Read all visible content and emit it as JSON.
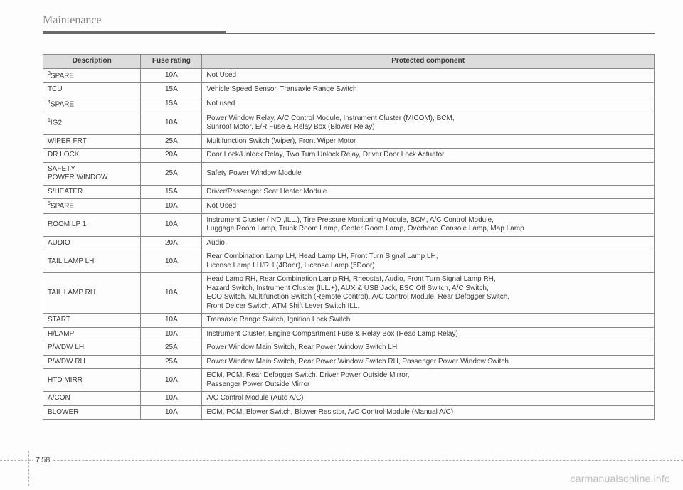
{
  "section_title": "Maintenance",
  "table": {
    "headers": {
      "c1": "Description",
      "c2": "Fuse rating",
      "c3": "Protected component"
    },
    "rows": [
      {
        "sup": "3",
        "desc": "SPARE",
        "rating": "10A",
        "protected": "Not Used"
      },
      {
        "sup": "",
        "desc": "TCU",
        "rating": "15A",
        "protected": "Vehicle Speed Sensor, Transaxle Range Switch"
      },
      {
        "sup": "4",
        "desc": "SPARE",
        "rating": "15A",
        "protected": "Not used"
      },
      {
        "sup": "1",
        "desc": "IG2",
        "rating": "10A",
        "protected": "Power Window Relay, A/C Control Module, Instrument Cluster (MICOM), BCM,\nSunroof Motor, E/R Fuse & Relay Box (Blower Relay)"
      },
      {
        "sup": "",
        "desc": "WIPER FRT",
        "rating": "25A",
        "protected": "Multifunction Switch (Wiper), Front Wiper Motor"
      },
      {
        "sup": "",
        "desc": "DR LOCK",
        "rating": "20A",
        "protected": "Door Lock/Unlock Relay, Two Turn Unlock Relay, Driver Door Lock Actuator"
      },
      {
        "sup": "",
        "desc": "SAFETY\nPOWER WINDOW",
        "rating": "25A",
        "protected": "Safety Power Window Module"
      },
      {
        "sup": "",
        "desc": "S/HEATER",
        "rating": "15A",
        "protected": "Driver/Passenger Seat Heater Module"
      },
      {
        "sup": "5",
        "desc": "SPARE",
        "rating": "10A",
        "protected": "Not Used"
      },
      {
        "sup": "",
        "desc": "ROOM LP 1",
        "rating": "10A",
        "protected": "Instrument Cluster (IND.,ILL.), Tire Pressure Monitoring Module, BCM, A/C Control Module,\nLuggage Room Lamp, Trunk Room Lamp, Center Room Lamp, Overhead Console Lamp, Map Lamp"
      },
      {
        "sup": "",
        "desc": "AUDIO",
        "rating": "20A",
        "protected": "Audio"
      },
      {
        "sup": "",
        "desc": "TAIL LAMP LH",
        "rating": "10A",
        "protected": "Rear Combination Lamp LH, Head Lamp LH, Front Turn Signal Lamp LH,\nLicense Lamp LH/RH (4Door), License Lamp (5Door)"
      },
      {
        "sup": "",
        "desc": "TAIL LAMP RH",
        "rating": "10A",
        "protected": "Head Lamp RH, Rear Combination Lamp RH, Rheostat, Audio, Front Turn Signal Lamp RH,\nHazard Switch, Instrument Cluster (ILL.+), AUX & USB Jack, ESC Off Switch, A/C Switch,\nECO Switch, Multifunction Switch (Remote Control), A/C Control Module, Rear Defogger Switch,\nFront Deicer Switch, ATM Shift Lever Switch ILL."
      },
      {
        "sup": "",
        "desc": "START",
        "rating": "10A",
        "protected": "Transaxle Range Switch, Ignition Lock Switch"
      },
      {
        "sup": "",
        "desc": "H/LAMP",
        "rating": "10A",
        "protected": "Instrument Cluster, Engine Compartment Fuse & Relay Box (Head Lamp Relay)"
      },
      {
        "sup": "",
        "desc": "P/WDW LH",
        "rating": "25A",
        "protected": "Power Window Main Switch, Rear Power Window Switch LH"
      },
      {
        "sup": "",
        "desc": "P/WDW RH",
        "rating": "25A",
        "protected": "Power Window Main Switch, Rear Power Window Switch RH, Passenger Power Window Switch"
      },
      {
        "sup": "",
        "desc": "HTD MIRR",
        "rating": "10A",
        "protected": "ECM, PCM, Rear Defogger Switch, Driver Power Outside Mirror,\nPassenger Power Outside Mirror"
      },
      {
        "sup": "",
        "desc": "A/CON",
        "rating": "10A",
        "protected": "A/C Control Module (Auto A/C)"
      },
      {
        "sup": "",
        "desc": "BLOWER",
        "rating": "10A",
        "protected": "ECM, PCM, Blower Switch, Blower Resistor, A/C Control Module (Manual A/C)"
      }
    ]
  },
  "footer": {
    "chapter": "7",
    "page": "58"
  },
  "watermark": "carmanualsonline.info"
}
